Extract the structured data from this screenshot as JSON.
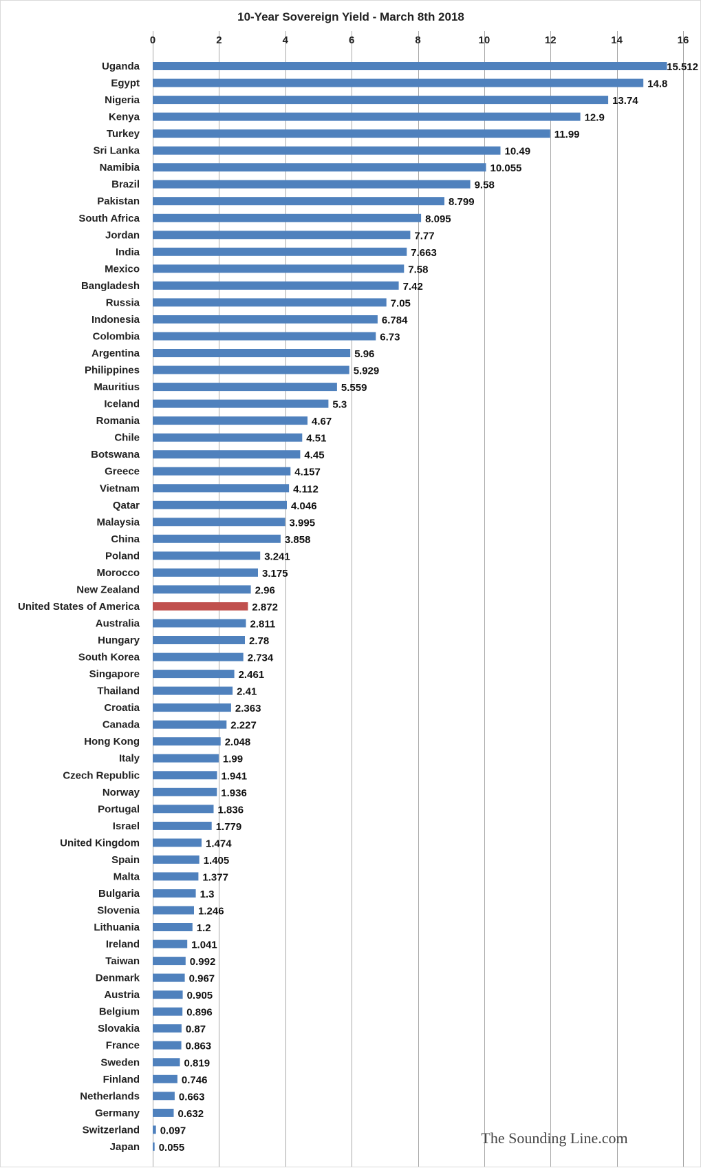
{
  "chart_data": {
    "type": "bar",
    "orientation": "horizontal",
    "title": "10-Year Sovereign Yield - March 8th 2018",
    "xlim": [
      0,
      16
    ],
    "xticks": [
      0,
      2,
      4,
      6,
      8,
      10,
      12,
      14,
      16
    ],
    "axis_position": "top",
    "grid": true,
    "highlight_category": "United States of America",
    "colors": {
      "bar": "#4f81bd",
      "highlight": "#c0504d"
    },
    "categories": [
      "Uganda",
      "Egypt",
      "Nigeria",
      "Kenya",
      "Turkey",
      "Sri Lanka",
      "Namibia",
      "Brazil",
      "Pakistan",
      "South Africa",
      "Jordan",
      "India",
      "Mexico",
      "Bangladesh",
      "Russia",
      "Indonesia",
      "Colombia",
      "Argentina",
      "Philippines",
      "Mauritius",
      "Iceland",
      "Romania",
      "Chile",
      "Botswana",
      "Greece",
      "Vietnam",
      "Qatar",
      "Malaysia",
      "China",
      "Poland",
      "Morocco",
      "New Zealand",
      "United States of America",
      "Australia",
      "Hungary",
      "South Korea",
      "Singapore",
      "Thailand",
      "Croatia",
      "Canada",
      "Hong Kong",
      "Italy",
      "Czech Republic",
      "Norway",
      "Portugal",
      "Israel",
      "United Kingdom",
      "Spain",
      "Malta",
      "Bulgaria",
      "Slovenia",
      "Lithuania",
      "Ireland",
      "Taiwan",
      "Denmark",
      "Austria",
      "Belgium",
      "Slovakia",
      "France",
      "Sweden",
      "Finland",
      "Netherlands",
      "Germany",
      "Switzerland",
      "Japan"
    ],
    "values": [
      15.512,
      14.8,
      13.74,
      12.9,
      11.99,
      10.49,
      10.055,
      9.58,
      8.799,
      8.095,
      7.77,
      7.663,
      7.58,
      7.42,
      7.05,
      6.784,
      6.73,
      5.96,
      5.929,
      5.559,
      5.3,
      4.67,
      4.51,
      4.45,
      4.157,
      4.112,
      4.046,
      3.995,
      3.858,
      3.241,
      3.175,
      2.96,
      2.872,
      2.811,
      2.78,
      2.734,
      2.461,
      2.41,
      2.363,
      2.227,
      2.048,
      1.99,
      1.941,
      1.936,
      1.836,
      1.779,
      1.474,
      1.405,
      1.377,
      1.3,
      1.246,
      1.2,
      1.041,
      0.992,
      0.967,
      0.905,
      0.896,
      0.87,
      0.863,
      0.819,
      0.746,
      0.663,
      0.632,
      0.097,
      0.055
    ],
    "value_labels": [
      "15.512",
      "14.8",
      "13.74",
      "12.9",
      "11.99",
      "10.49",
      "10.055",
      "9.58",
      "8.799",
      "8.095",
      "7.77",
      "7.663",
      "7.58",
      "7.42",
      "7.05",
      "6.784",
      "6.73",
      "5.96",
      "5.929",
      "5.559",
      "5.3",
      "4.67",
      "4.51",
      "4.45",
      "4.157",
      "4.112",
      "4.046",
      "3.995",
      "3.858",
      "3.241",
      "3.175",
      "2.96",
      "2.872",
      "2.811",
      "2.78",
      "2.734",
      "2.461",
      "2.41",
      "2.363",
      "2.227",
      "2.048",
      "1.99",
      "1.941",
      "1.936",
      "1.836",
      "1.779",
      "1.474",
      "1.405",
      "1.377",
      "1.3",
      "1.246",
      "1.2",
      "1.041",
      "0.992",
      "0.967",
      "0.905",
      "0.896",
      "0.87",
      "0.863",
      "0.819",
      "0.746",
      "0.663",
      "0.632",
      "0.097",
      "0.055"
    ]
  },
  "watermark": "The Sounding Line.com"
}
